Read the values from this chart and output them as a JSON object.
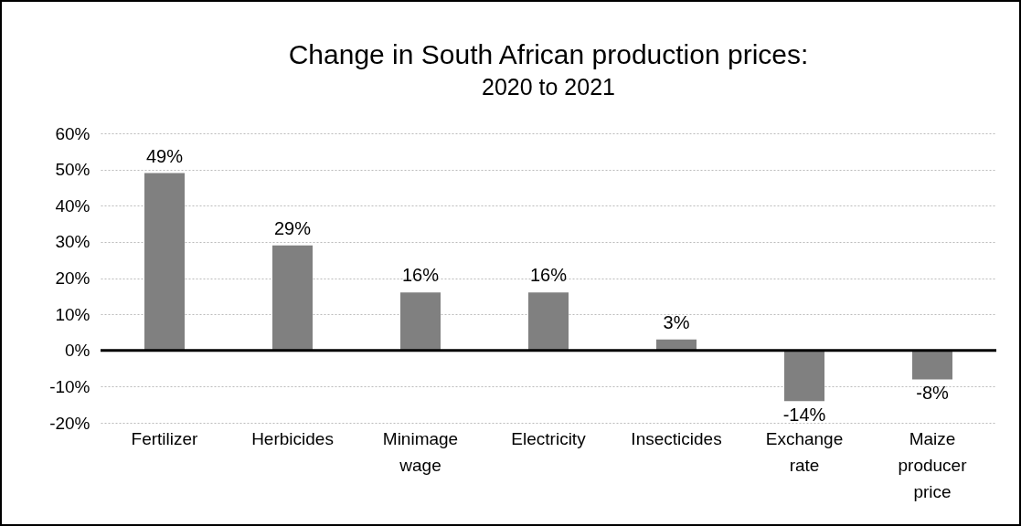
{
  "chart_data": {
    "type": "bar",
    "title": "Change in South African production prices:",
    "subtitle": "2020 to 2021",
    "categories": [
      "Fertilizer",
      "Herbicides",
      "Minimage wage",
      "Electricity",
      "Insecticides",
      "Exchange rate",
      "Maize producer price"
    ],
    "values": [
      49,
      29,
      16,
      16,
      3,
      -14,
      -8
    ],
    "value_labels": [
      "49%",
      "29%",
      "16%",
      "16%",
      "3%",
      "-14%",
      "-8%"
    ],
    "color": "#808080",
    "ylim": [
      -20,
      60
    ],
    "yticks": [
      {
        "value": -20,
        "label": "-20%"
      },
      {
        "value": -10,
        "label": "-10%"
      },
      {
        "value": 0,
        "label": "0%"
      },
      {
        "value": 10,
        "label": "10%"
      },
      {
        "value": 20,
        "label": "20%"
      },
      {
        "value": 30,
        "label": "30%"
      },
      {
        "value": 40,
        "label": "40%"
      },
      {
        "value": 50,
        "label": "50%"
      },
      {
        "value": 60,
        "label": "60%"
      }
    ],
    "ref_lines": [
      {
        "axis": "y",
        "value": 0,
        "color": "#000000"
      }
    ],
    "grid": "y"
  }
}
